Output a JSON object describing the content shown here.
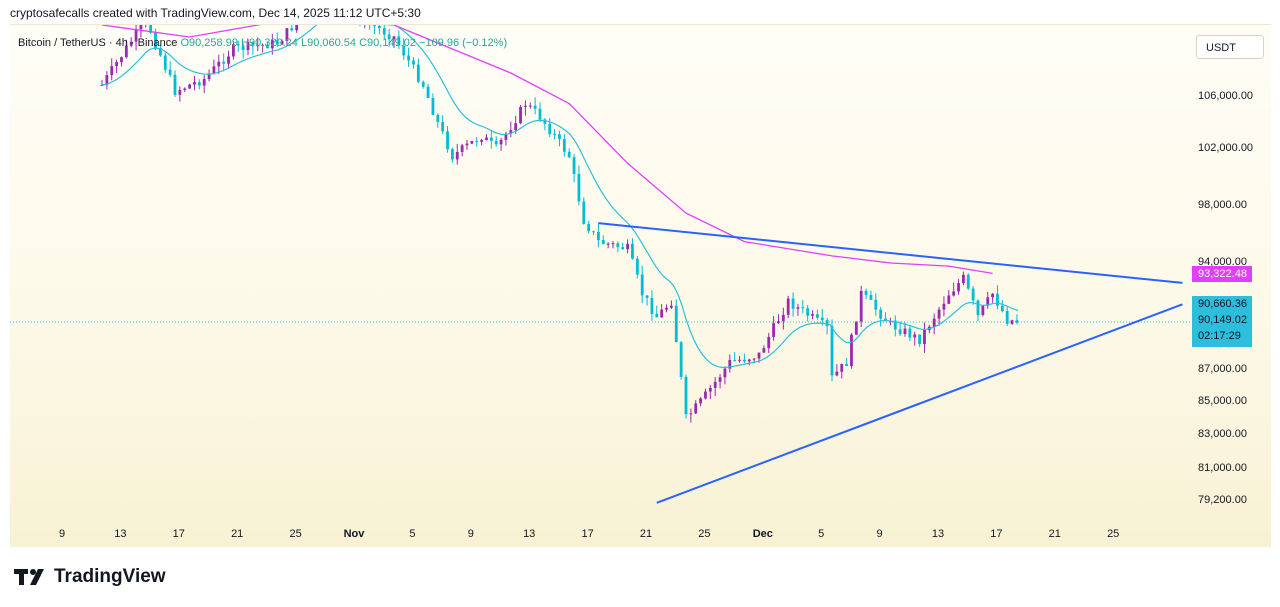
{
  "header": {
    "text": "cryptosafecalls created with TradingView.com, Dec 14, 2025 11:12 UTC+5:30"
  },
  "legend": {
    "symbol": "Bitcoin / TetherUS · 4h · Binance",
    "open": "O90,258.99",
    "high": "H90,329.24",
    "low": "L90,060.54",
    "close": "C90,149.02",
    "change": "−109.96 (−0.12%)"
  },
  "currency": "USDT",
  "footer": {
    "logo_text": "TradingView"
  },
  "colors": {
    "up": "#26a69a",
    "down": "#787b86",
    "candle_up": "#9c27b0",
    "candle_down": "#00bcd4",
    "ema": "#2bbfdc",
    "ma": "#e040fb",
    "trendline": "#2962ff"
  },
  "price_labels": {
    "ma": "93,322.48",
    "ema": "90,660.36",
    "last": "90,149.02",
    "countdown": "02:17:29"
  },
  "chart_data": {
    "type": "line",
    "y_axis_ticks": [
      "106,000.00",
      "102,000.00",
      "98,000.00",
      "94,000.00",
      "87,000.00",
      "85,000.00",
      "83,000.00",
      "81,000.00",
      "79,200.00"
    ],
    "x_axis_ticks": [
      {
        "label": "9"
      },
      {
        "label": "13"
      },
      {
        "label": "17"
      },
      {
        "label": "21"
      },
      {
        "label": "25"
      },
      {
        "label": "Nov",
        "bold": true
      },
      {
        "label": "5"
      },
      {
        "label": "9"
      },
      {
        "label": "13"
      },
      {
        "label": "17"
      },
      {
        "label": "21"
      },
      {
        "label": "25"
      },
      {
        "label": "Dec",
        "bold": true
      },
      {
        "label": "5"
      },
      {
        "label": "9"
      },
      {
        "label": "13"
      },
      {
        "label": "17"
      },
      {
        "label": "21"
      },
      {
        "label": "25"
      }
    ],
    "series": [
      {
        "values": [
          [
            "Oct 12",
            107000
          ],
          [
            "Oct 15",
            112500
          ],
          [
            "Oct 17",
            106500
          ],
          [
            "Oct 19",
            107500
          ],
          [
            "Oct 21",
            110000
          ],
          [
            "Oct 24",
            110500
          ],
          [
            "Oct 27",
            114500
          ],
          [
            "Oct 29",
            113000
          ],
          [
            "Nov 1",
            111000
          ],
          [
            "Nov 3",
            107000
          ],
          [
            "Nov 4",
            104000
          ],
          [
            "Nov 5",
            101500
          ],
          [
            "Nov 7",
            103000
          ],
          [
            "Nov 8",
            102000
          ],
          [
            "Nov 10",
            105500
          ],
          [
            "Nov 11",
            104500
          ],
          [
            "Nov 12",
            103000
          ],
          [
            "Nov 13",
            101500
          ],
          [
            "Nov 14",
            97000
          ],
          [
            "Nov 15",
            95500
          ],
          [
            "Nov 17",
            95000
          ],
          [
            "Nov 18",
            92000
          ],
          [
            "Nov 19",
            90500
          ],
          [
            "Nov 20",
            91500
          ],
          [
            "Nov 21",
            84000
          ],
          [
            "Nov 22",
            85000
          ],
          [
            "Nov 24",
            87500
          ],
          [
            "Nov 26",
            88000
          ],
          [
            "Nov 28",
            91500
          ],
          [
            "Dec 1",
            89500
          ],
          [
            "Dec 1",
            86500
          ],
          [
            "Dec 2",
            87500
          ],
          [
            "Dec 3",
            92000
          ],
          [
            "Dec 5",
            90000
          ],
          [
            "Dec 7",
            89000
          ],
          [
            "Dec 9",
            92000
          ],
          [
            "Dec 10",
            93000
          ],
          [
            "Dec 11",
            90500
          ],
          [
            "Dec 12",
            92000
          ],
          [
            "Dec 13",
            90300
          ],
          [
            "Dec 14",
            90149
          ]
        ]
      },
      {
        "values": [
          [
            "Oct 12",
            112000
          ],
          [
            "Oct 18",
            111000
          ],
          [
            "Oct 25",
            112500
          ],
          [
            "Nov 1",
            112000
          ],
          [
            "Nov 5",
            110000
          ],
          [
            "Nov 9",
            108000
          ],
          [
            "Nov 13",
            105500
          ],
          [
            "Nov 17",
            101000
          ],
          [
            "Nov 21",
            97500
          ],
          [
            "Nov 25",
            95500
          ],
          [
            "Dec 1",
            94500
          ],
          [
            "Dec 5",
            94000
          ],
          [
            "Dec 9",
            93800
          ],
          [
            "Dec 12",
            93322
          ]
        ]
      },
      {
        "values": [
          [
            "Nov 15",
            96800
          ],
          [
            "Dec 25",
            92700
          ]
        ]
      },
      {
        "values": [
          [
            "Nov 19",
            79100
          ],
          [
            "Dec 25",
            91300
          ]
        ]
      }
    ]
  }
}
